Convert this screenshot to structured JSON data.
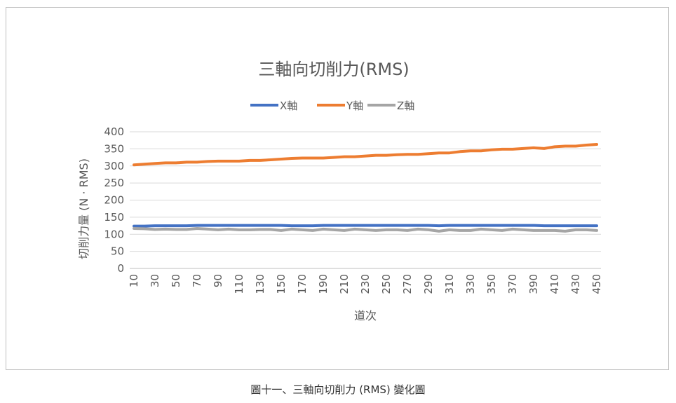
{
  "chart_data": {
    "type": "line",
    "title": "三軸向切削力(RMS)",
    "xlabel": "道次",
    "ylabel": "切削力量 (N · RMS)",
    "ylim": [
      0,
      400
    ],
    "yticks": [
      0,
      50,
      100,
      150,
      200,
      250,
      300,
      350,
      400
    ],
    "grid": true,
    "legend_position": "top",
    "x": [
      10,
      20,
      30,
      40,
      50,
      60,
      70,
      80,
      90,
      100,
      110,
      120,
      130,
      140,
      150,
      160,
      170,
      180,
      190,
      200,
      210,
      220,
      230,
      240,
      250,
      260,
      270,
      280,
      290,
      300,
      310,
      320,
      330,
      340,
      350,
      360,
      370,
      380,
      390,
      400,
      410,
      420,
      430,
      440,
      450
    ],
    "x_tick_labels": [
      "10",
      "30",
      "50",
      "70",
      "90",
      "110",
      "130",
      "150",
      "170",
      "190",
      "210",
      "230",
      "250",
      "270",
      "290",
      "310",
      "330",
      "350",
      "370",
      "390",
      "410",
      "430",
      "450"
    ],
    "series": [
      {
        "name": "X軸",
        "color": "#4472c4",
        "values": [
          124,
          124,
          125,
          125,
          125,
          125,
          126,
          126,
          126,
          126,
          126,
          126,
          126,
          126,
          126,
          125,
          125,
          125,
          126,
          126,
          126,
          126,
          126,
          126,
          126,
          126,
          126,
          126,
          126,
          125,
          126,
          126,
          126,
          126,
          126,
          126,
          126,
          126,
          126,
          125,
          125,
          125,
          125,
          125,
          125
        ]
      },
      {
        "name": "Y軸",
        "color": "#ed7d31",
        "values": [
          303,
          305,
          307,
          309,
          309,
          311,
          311,
          313,
          314,
          314,
          314,
          316,
          316,
          318,
          320,
          322,
          323,
          323,
          323,
          325,
          327,
          327,
          329,
          331,
          331,
          333,
          334,
          334,
          336,
          338,
          338,
          342,
          344,
          344,
          347,
          349,
          349,
          351,
          353,
          351,
          356,
          358,
          358,
          361,
          363
        ]
      },
      {
        "name": "Z軸",
        "color": "#a5a5a5",
        "values": [
          117,
          116,
          114,
          115,
          114,
          114,
          117,
          115,
          113,
          115,
          113,
          113,
          114,
          114,
          111,
          115,
          113,
          111,
          115,
          113,
          111,
          115,
          113,
          111,
          113,
          113,
          111,
          115,
          113,
          109,
          113,
          111,
          111,
          115,
          113,
          111,
          115,
          113,
          111,
          111,
          111,
          109,
          113,
          113,
          111
        ]
      }
    ]
  },
  "caption": "圖十一、三軸向切削力 (RMS) 變化圖"
}
